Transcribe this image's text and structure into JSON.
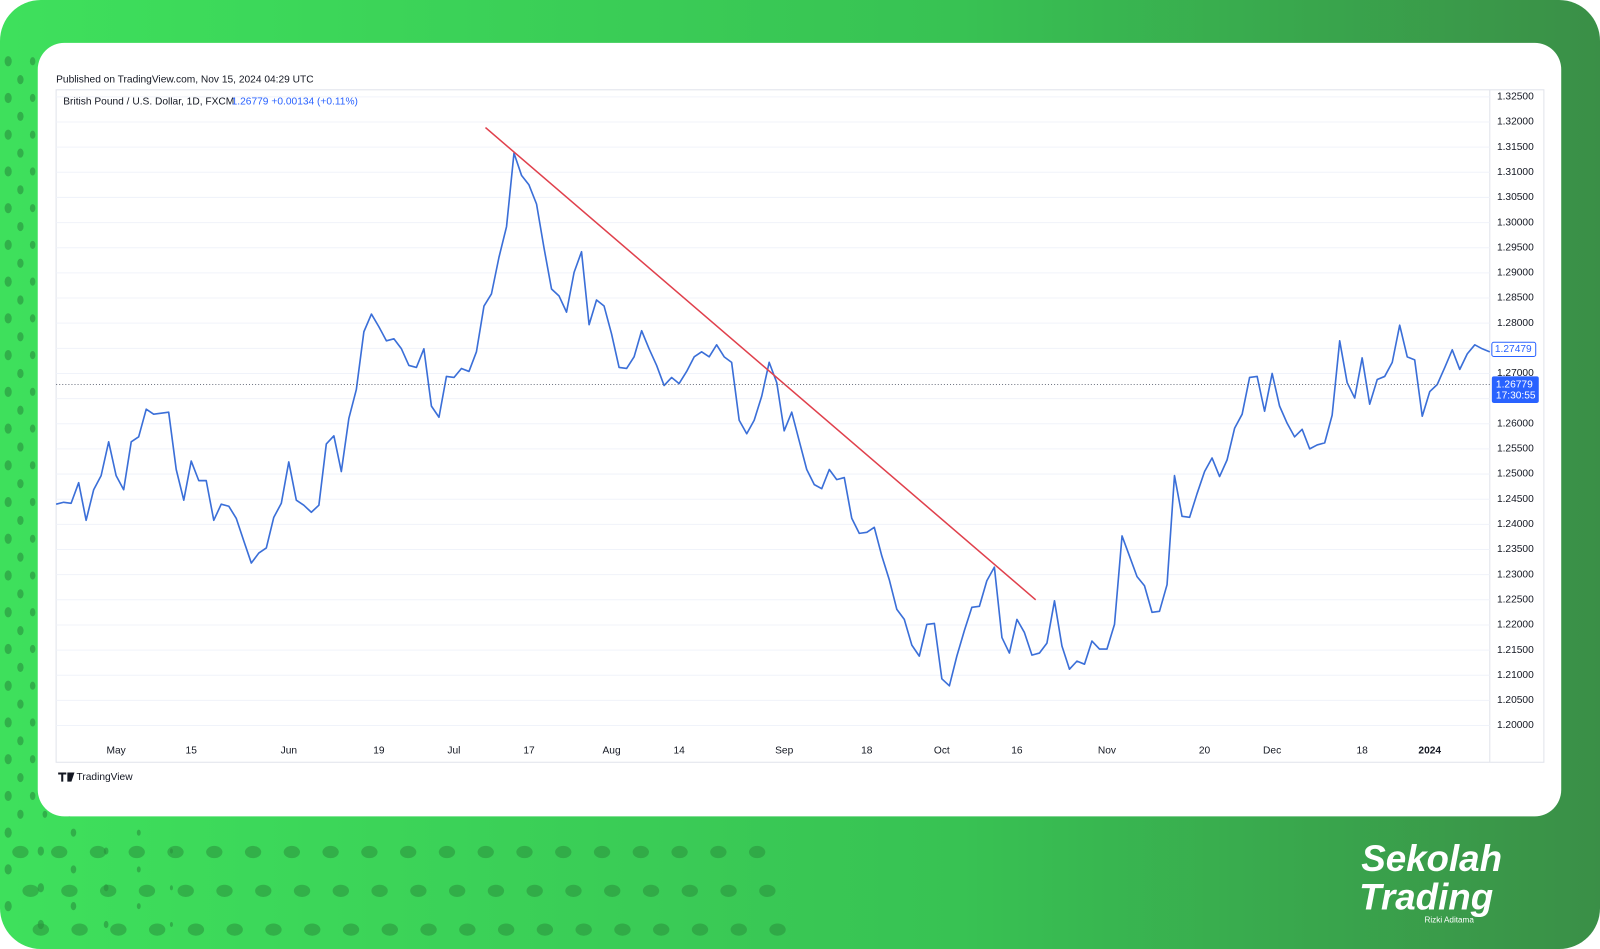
{
  "publisher": "Published on TradingView.com, Nov 15, 2024 04:29 UTC",
  "footer_brand": "TradingView",
  "watermark": {
    "line1": "Sekolah",
    "line2": "Trading",
    "author": "Rizki Aditama"
  },
  "chart_data": {
    "type": "line",
    "title": "British Pound / U.S. Dollar, 1D, FXCM",
    "change": "+0.00134 (+0.11%)",
    "countdown": "17:30:55",
    "color": "#3b6fd8",
    "current_price": {
      "value": 1.26779,
      "label": "1.26779"
    },
    "last_price": {
      "value": 1.27479,
      "label": "1.27479"
    },
    "trendline": {
      "x": [
        57.2,
        130.5
      ],
      "y": [
        1.3189,
        1.225
      ],
      "color": "#e0404c"
    },
    "ylim": [
      1.1927,
      1.3264
    ],
    "yticks": [
      {
        "value": 1.2,
        "label": "1.20000"
      },
      {
        "value": 1.205,
        "label": "1.20500"
      },
      {
        "value": 1.21,
        "label": "1.21000"
      },
      {
        "value": 1.215,
        "label": "1.21500"
      },
      {
        "value": 1.22,
        "label": "1.22000"
      },
      {
        "value": 1.225,
        "label": "1.22500"
      },
      {
        "value": 1.23,
        "label": "1.23000"
      },
      {
        "value": 1.235,
        "label": "1.23500"
      },
      {
        "value": 1.24,
        "label": "1.24000"
      },
      {
        "value": 1.245,
        "label": "1.24500"
      },
      {
        "value": 1.25,
        "label": "1.25000"
      },
      {
        "value": 1.255,
        "label": "1.25500"
      },
      {
        "value": 1.26,
        "label": "1.26000"
      },
      {
        "value": 1.265,
        "label": "1.26500"
      },
      {
        "value": 1.27,
        "label": "1.27000"
      },
      {
        "value": 1.275,
        "label": "1.27500"
      },
      {
        "value": 1.28,
        "label": "1.28000"
      },
      {
        "value": 1.285,
        "label": "1.28500"
      },
      {
        "value": 1.29,
        "label": "1.29000"
      },
      {
        "value": 1.295,
        "label": "1.29500"
      },
      {
        "value": 1.3,
        "label": "1.30000"
      },
      {
        "value": 1.305,
        "label": "1.30500"
      },
      {
        "value": 1.31,
        "label": "1.31000"
      },
      {
        "value": 1.315,
        "label": "1.31500"
      },
      {
        "value": 1.32,
        "label": "1.32000"
      },
      {
        "value": 1.325,
        "label": "1.32500"
      }
    ],
    "grid": true,
    "categories": [
      null,
      null,
      null,
      null,
      null,
      null,
      null,
      null,
      "May",
      null,
      null,
      null,
      null,
      null,
      null,
      null,
      null,
      null,
      "15",
      null,
      null,
      null,
      null,
      null,
      null,
      null,
      null,
      null,
      null,
      null,
      null,
      "Jun",
      null,
      null,
      null,
      null,
      null,
      null,
      null,
      null,
      null,
      null,
      null,
      "19",
      null,
      null,
      null,
      null,
      null,
      null,
      null,
      null,
      null,
      "Jul",
      null,
      null,
      null,
      null,
      null,
      null,
      null,
      null,
      null,
      "17",
      null,
      null,
      null,
      null,
      null,
      null,
      null,
      null,
      null,
      null,
      "Aug",
      null,
      null,
      null,
      null,
      null,
      null,
      null,
      null,
      "14",
      null,
      null,
      null,
      null,
      null,
      null,
      null,
      null,
      null,
      null,
      null,
      null,
      null,
      "Sep",
      null,
      null,
      null,
      null,
      null,
      null,
      null,
      null,
      null,
      null,
      "18",
      null,
      null,
      null,
      null,
      null,
      null,
      null,
      null,
      null,
      "Oct",
      null,
      null,
      null,
      null,
      null,
      null,
      null,
      null,
      null,
      "16",
      null,
      null,
      null,
      null,
      null,
      null,
      null,
      null,
      null,
      null,
      null,
      "Nov",
      null,
      null,
      null,
      null,
      null,
      null,
      null,
      null,
      null,
      null,
      null,
      null,
      "20",
      null,
      null,
      null,
      null,
      null,
      null,
      null,
      null,
      "Dec",
      null,
      null,
      null,
      null,
      null,
      null,
      null,
      null,
      null,
      null,
      null,
      "18",
      null,
      null,
      null,
      null,
      null,
      null,
      null,
      null,
      "2024",
      null,
      null,
      null,
      null,
      null,
      null,
      null,
      null
    ],
    "values": [
      1.244,
      1.2444,
      1.2442,
      1.2483,
      1.2408,
      1.2469,
      1.2497,
      1.2564,
      1.2497,
      1.2469,
      1.2564,
      1.2574,
      1.2629,
      1.2619,
      1.2621,
      1.2623,
      1.2509,
      1.2448,
      1.2526,
      1.2487,
      1.2487,
      1.2408,
      1.244,
      1.2436,
      1.2412,
      1.2367,
      1.2323,
      1.2343,
      1.2353,
      1.2414,
      1.2442,
      1.2524,
      1.2448,
      1.2438,
      1.2424,
      1.2438,
      1.256,
      1.2576,
      1.2505,
      1.2611,
      1.2668,
      1.2783,
      1.2818,
      1.2793,
      1.2765,
      1.2769,
      1.2749,
      1.2716,
      1.2712,
      1.2749,
      1.2635,
      1.2613,
      1.2694,
      1.2692,
      1.271,
      1.2704,
      1.2743,
      1.2834,
      1.2858,
      1.2931,
      1.2992,
      1.3138,
      1.3094,
      1.3075,
      1.3037,
      1.295,
      1.2868,
      1.2854,
      1.2822,
      1.2901,
      1.2942,
      1.2797,
      1.2846,
      1.2834,
      1.2779,
      1.2712,
      1.271,
      1.2733,
      1.2785,
      1.2749,
      1.2716,
      1.2676,
      1.2692,
      1.268,
      1.2704,
      1.2733,
      1.2743,
      1.2733,
      1.2757,
      1.2733,
      1.2722,
      1.2607,
      1.258,
      1.2607,
      1.2655,
      1.2722,
      1.2682,
      1.2586,
      1.2623,
      1.2566,
      1.2509,
      1.2479,
      1.2471,
      1.2509,
      1.2489,
      1.2493,
      1.2412,
      1.2382,
      1.2384,
      1.2394,
      1.2337,
      1.229,
      1.2231,
      1.2211,
      1.216,
      1.2138,
      1.2201,
      1.2203,
      1.2093,
      1.2079,
      1.2138,
      1.2189,
      1.2235,
      1.2237,
      1.2288,
      1.2315,
      1.2175,
      1.2144,
      1.2211,
      1.2185,
      1.214,
      1.2144,
      1.2164,
      1.2248,
      1.2158,
      1.2112,
      1.2128,
      1.2122,
      1.2168,
      1.2152,
      1.2152,
      1.2201,
      1.2377,
      1.2337,
      1.2296,
      1.2278,
      1.2225,
      1.2227,
      1.228,
      1.2497,
      1.2416,
      1.2414,
      1.2461,
      1.2505,
      1.2532,
      1.2495,
      1.2528,
      1.2591,
      1.2619,
      1.2692,
      1.2694,
      1.2625,
      1.27,
      1.2635,
      1.2601,
      1.2574,
      1.2589,
      1.255,
      1.2558,
      1.2562,
      1.2617,
      1.2765,
      1.2682,
      1.2651,
      1.2731,
      1.2639,
      1.2688,
      1.2694,
      1.2722,
      1.2796,
      1.2733,
      1.2727,
      1.2615,
      1.2664,
      1.2678,
      1.2712,
      1.2747,
      1.2708,
      1.2739,
      1.2757,
      1.2749,
      1.2743
    ]
  }
}
